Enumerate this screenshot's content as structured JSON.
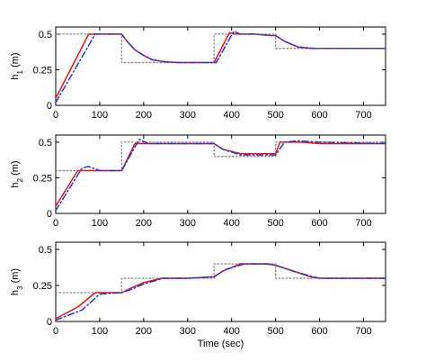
{
  "chart_data": [
    {
      "type": "line",
      "ylabel": "h_1 (m)",
      "xlabel": "",
      "xlim": [
        0,
        750
      ],
      "ylim": [
        0,
        0.55
      ],
      "xticks": [
        0,
        100,
        200,
        300,
        400,
        500,
        600,
        700
      ],
      "xtick_labels": [
        "0",
        "100",
        "200",
        "300",
        "400",
        "500",
        "600",
        "700"
      ],
      "yticks": [
        0,
        0.25,
        0.5
      ],
      "ytick_labels": [
        "0",
        "0.25",
        "0.5"
      ],
      "grid": false,
      "series": [
        {
          "style": "dotted",
          "color": "#888888",
          "x": [
            0,
            150,
            150,
            360,
            360,
            500,
            500,
            750
          ],
          "y": [
            0.5,
            0.5,
            0.3,
            0.3,
            0.5,
            0.5,
            0.4,
            0.4
          ]
        },
        {
          "style": "solid",
          "color": "#ee1111",
          "x": [
            0,
            75,
            150,
            165,
            180,
            200,
            220,
            250,
            280,
            360,
            395,
            410,
            450,
            490,
            500,
            520,
            550,
            580,
            750
          ],
          "y": [
            0.05,
            0.5,
            0.5,
            0.44,
            0.39,
            0.35,
            0.32,
            0.305,
            0.3,
            0.3,
            0.51,
            0.5,
            0.5,
            0.49,
            0.49,
            0.45,
            0.41,
            0.4,
            0.4
          ]
        },
        {
          "style": "dashdot",
          "color": "#1f3bd6",
          "x": [
            0,
            90,
            100,
            150,
            165,
            180,
            200,
            220,
            250,
            280,
            365,
            405,
            420,
            450,
            490,
            500,
            520,
            550,
            590,
            750
          ],
          "y": [
            0.02,
            0.5,
            0.5,
            0.5,
            0.44,
            0.39,
            0.35,
            0.32,
            0.305,
            0.3,
            0.3,
            0.52,
            0.5,
            0.5,
            0.49,
            0.49,
            0.45,
            0.41,
            0.4,
            0.4
          ]
        }
      ]
    },
    {
      "type": "line",
      "ylabel": "h_2 (m)",
      "xlabel": "",
      "xlim": [
        0,
        750
      ],
      "ylim": [
        0,
        0.55
      ],
      "xticks": [
        0,
        100,
        200,
        300,
        400,
        500,
        600,
        700
      ],
      "xtick_labels": [
        "0",
        "100",
        "200",
        "300",
        "400",
        "500",
        "600",
        "700"
      ],
      "yticks": [
        0,
        0.25,
        0.5
      ],
      "ytick_labels": [
        "0",
        "0.25",
        "0.5"
      ],
      "grid": false,
      "series": [
        {
          "style": "dotted",
          "color": "#888888",
          "x": [
            0,
            150,
            150,
            360,
            360,
            500,
            500,
            750
          ],
          "y": [
            0.3,
            0.3,
            0.5,
            0.5,
            0.4,
            0.4,
            0.5,
            0.5
          ]
        },
        {
          "style": "solid",
          "color": "#ee1111",
          "x": [
            0,
            50,
            80,
            150,
            180,
            200,
            250,
            360,
            380,
            420,
            470,
            500,
            510,
            530,
            560,
            600,
            750
          ],
          "y": [
            0.05,
            0.3,
            0.3,
            0.3,
            0.49,
            0.49,
            0.49,
            0.49,
            0.45,
            0.42,
            0.42,
            0.42,
            0.5,
            0.5,
            0.5,
            0.49,
            0.49
          ]
        },
        {
          "style": "dashdot",
          "color": "#1f3bd6",
          "x": [
            0,
            60,
            75,
            100,
            150,
            190,
            210,
            250,
            360,
            380,
            420,
            470,
            500,
            520,
            550,
            600,
            750
          ],
          "y": [
            0.02,
            0.32,
            0.33,
            0.3,
            0.3,
            0.52,
            0.49,
            0.49,
            0.49,
            0.45,
            0.41,
            0.41,
            0.41,
            0.5,
            0.51,
            0.5,
            0.49
          ]
        }
      ]
    },
    {
      "type": "line",
      "ylabel": "h_3 (m)",
      "xlabel": "Time (sec)",
      "xlim": [
        0,
        750
      ],
      "ylim": [
        0,
        0.55
      ],
      "xticks": [
        0,
        100,
        200,
        300,
        400,
        500,
        600,
        700
      ],
      "xtick_labels": [
        "0",
        "100",
        "200",
        "300",
        "400",
        "500",
        "600",
        "700"
      ],
      "yticks": [
        0,
        0.25,
        0.5
      ],
      "ytick_labels": [
        "0",
        "0.25",
        "0.5"
      ],
      "grid": false,
      "series": [
        {
          "style": "dotted",
          "color": "#888888",
          "x": [
            0,
            150,
            150,
            360,
            360,
            500,
            500,
            750
          ],
          "y": [
            0.2,
            0.2,
            0.3,
            0.3,
            0.4,
            0.4,
            0.3,
            0.3
          ]
        },
        {
          "style": "solid",
          "color": "#ee1111",
          "x": [
            0,
            50,
            90,
            150,
            170,
            200,
            240,
            300,
            360,
            380,
            420,
            480,
            500,
            540,
            580,
            600,
            750
          ],
          "y": [
            0.02,
            0.1,
            0.2,
            0.2,
            0.23,
            0.27,
            0.3,
            0.3,
            0.31,
            0.35,
            0.4,
            0.4,
            0.39,
            0.35,
            0.31,
            0.3,
            0.3
          ]
        },
        {
          "style": "dashdot",
          "color": "#1f3bd6",
          "x": [
            0,
            60,
            100,
            150,
            170,
            200,
            245,
            300,
            360,
            385,
            430,
            480,
            500,
            540,
            585,
            600,
            750
          ],
          "y": [
            0.01,
            0.08,
            0.19,
            0.2,
            0.22,
            0.26,
            0.3,
            0.3,
            0.31,
            0.36,
            0.4,
            0.4,
            0.39,
            0.35,
            0.31,
            0.3,
            0.3
          ]
        }
      ]
    }
  ]
}
